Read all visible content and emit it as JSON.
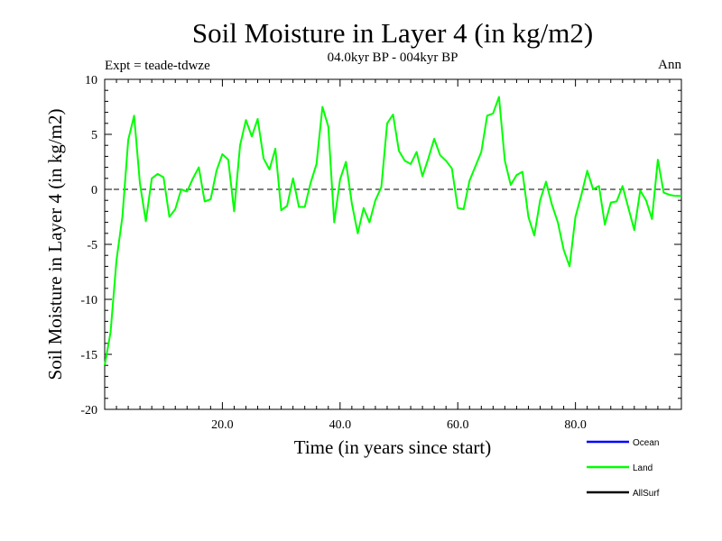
{
  "chart_data": {
    "type": "line",
    "title": "Soil Moisture in Layer 4 (in kg/m2)",
    "subtitle": "04.0kyr BP - 004kyr BP",
    "expt_label": "Expt = teade-tdwze",
    "season_label": "Ann",
    "xlabel": "Time (in years since start)",
    "ylabel": "Soil Moisture in Layer 4 (in kg/m2)",
    "xlim": [
      0,
      98
    ],
    "ylim": [
      -20,
      10
    ],
    "x_ticks": [
      20,
      40,
      60,
      80
    ],
    "x_tick_labels": [
      "20.0",
      "40.0",
      "60.0",
      "80.0"
    ],
    "y_ticks": [
      -20,
      -15,
      -10,
      -5,
      0,
      5,
      10
    ],
    "y_tick_labels": [
      "-20",
      "-15",
      "-10",
      "-5",
      "0",
      "5",
      "10"
    ],
    "zero_line": true,
    "legend": [
      {
        "name": "Ocean",
        "color": "#0000ff"
      },
      {
        "name": "Land",
        "color": "#00ff00"
      },
      {
        "name": "AllSurf",
        "color": "#000000"
      }
    ],
    "series": [
      {
        "name": "Land",
        "color": "#00ff00",
        "x": [
          0,
          1,
          2,
          3,
          4,
          5,
          6,
          7,
          8,
          9,
          10,
          11,
          12,
          13,
          14,
          15,
          16,
          17,
          18,
          19,
          20,
          21,
          22,
          23,
          24,
          25,
          26,
          27,
          28,
          29,
          30,
          31,
          32,
          33,
          34,
          35,
          36,
          37,
          38,
          39,
          40,
          41,
          42,
          43,
          44,
          45,
          46,
          47,
          48,
          49,
          50,
          51,
          52,
          53,
          54,
          55,
          56,
          57,
          58,
          59,
          60,
          61,
          62,
          63,
          64,
          65,
          66,
          67,
          68,
          69,
          70,
          71,
          72,
          73,
          74,
          75,
          76,
          77,
          78,
          79,
          80,
          81,
          82,
          83,
          84,
          85,
          86,
          87,
          88,
          89,
          90,
          91,
          92,
          93,
          94,
          95,
          96,
          97,
          98
        ],
        "values": [
          -16.0,
          -13.0,
          -6.5,
          -2.5,
          4.5,
          6.7,
          0.5,
          -2.9,
          1.0,
          1.4,
          1.1,
          -2.5,
          -1.8,
          0.0,
          -0.2,
          1.0,
          2.0,
          -1.1,
          -0.9,
          1.7,
          3.2,
          2.7,
          -2.0,
          4.0,
          6.3,
          4.8,
          6.4,
          2.8,
          1.8,
          3.7,
          -1.9,
          -1.5,
          1.0,
          -1.6,
          -1.6,
          0.6,
          2.3,
          7.5,
          5.7,
          -3.0,
          0.9,
          2.5,
          -1.3,
          -4.0,
          -1.7,
          -3.0,
          -1.0,
          0.2,
          6.0,
          6.8,
          3.5,
          2.6,
          2.3,
          3.4,
          1.2,
          2.8,
          4.6,
          3.1,
          2.6,
          1.9,
          -1.7,
          -1.8,
          0.8,
          2.1,
          3.4,
          6.7,
          6.9,
          8.4,
          2.6,
          0.4,
          1.3,
          1.6,
          -2.5,
          -4.2,
          -1.0,
          0.7,
          -1.4,
          -3.0,
          -5.5,
          -7.0,
          -2.5,
          -0.5,
          1.7,
          0.0,
          0.3,
          -3.2,
          -1.2,
          -1.1,
          0.3,
          -1.7,
          -3.7,
          -0.1,
          -1.0,
          -2.7,
          2.7,
          -0.3,
          -0.5,
          -0.6,
          -0.6
        ]
      }
    ]
  }
}
